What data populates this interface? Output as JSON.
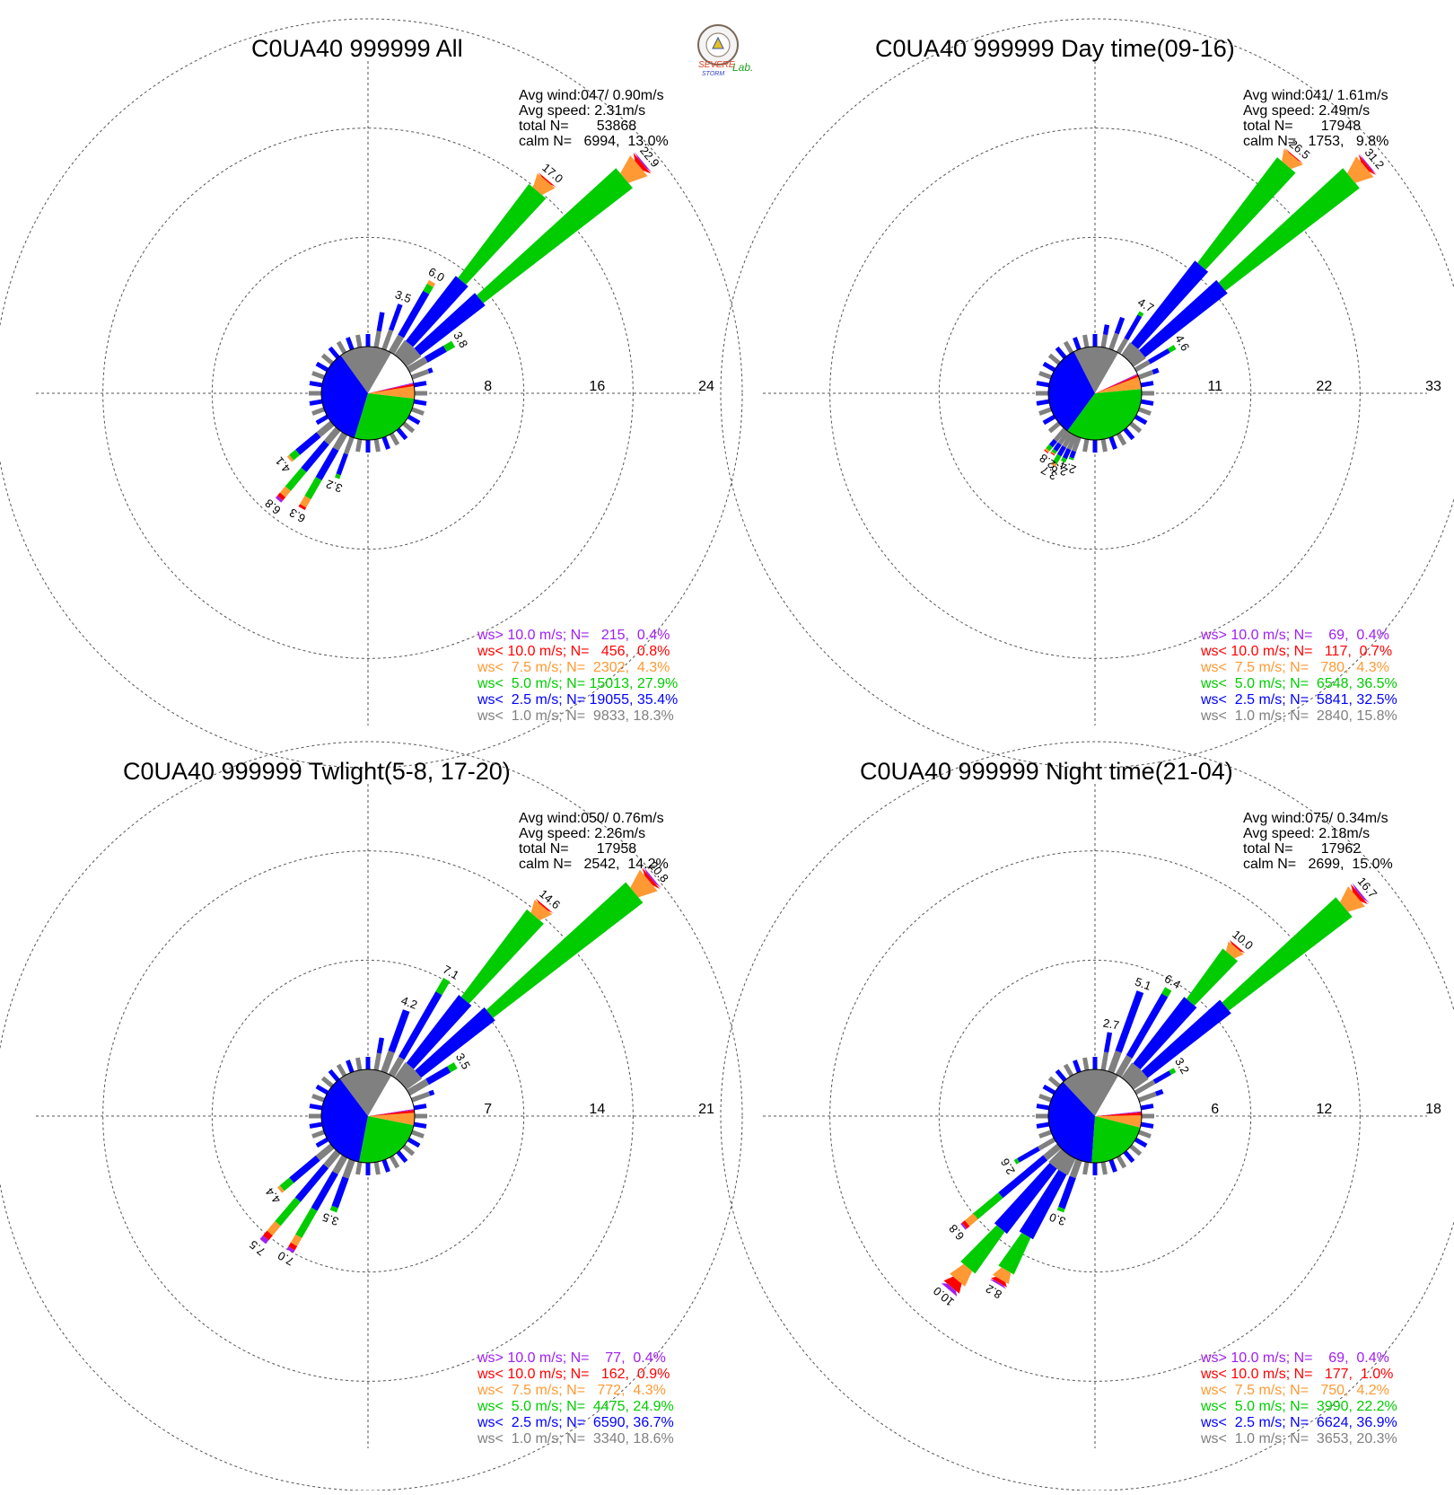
{
  "logo": {
    "text_lines": [
      "SEVERE",
      "STORM",
      "Lab."
    ]
  },
  "speed_classes": {
    "colors": {
      "gt10": "#a020f0",
      "lt10": "#ff0000",
      "lt75": "#ff9933",
      "lt50": "#00cc00",
      "lt25": "#0000ff",
      "lt10calm": "#808080"
    }
  },
  "chart_data": [
    {
      "type": "wind-rose",
      "title": "C0UA40 999999 All",
      "ring_labels": [
        "8",
        "16",
        "24"
      ],
      "rmax": 24,
      "info": [
        "Avg wind:047/ 0.90m/s",
        "Avg speed: 2.31m/s",
        "total N=       53868",
        "calm N=   6994,  13.0%"
      ],
      "legend": [
        {
          "key": "gt10",
          "text": "ws> 10.0 m/s; N=   215,  0.4%"
        },
        {
          "key": "lt10",
          "text": "ws< 10.0 m/s; N=   456,  0.8%"
        },
        {
          "key": "lt75",
          "text": "ws<  7.5 m/s; N=  2302,  4.3%"
        },
        {
          "key": "lt50",
          "text": "ws<  5.0 m/s; N= 15013, 27.9%"
        },
        {
          "key": "lt25",
          "text": "ws<  2.5 m/s; N= 19055, 35.4%"
        },
        {
          "key": "lt10calm",
          "text": "ws<  1.0 m/s; N=  9833, 18.3%"
        }
      ],
      "pie": [
        {
          "key": "lt10calm",
          "pct": 18.3
        },
        {
          "key": "lt25",
          "pct": 35.4
        },
        {
          "key": "lt50",
          "pct": 27.9
        },
        {
          "key": "lt75",
          "pct": 4.3
        },
        {
          "key": "lt10",
          "pct": 0.8
        },
        {
          "key": "gt10",
          "pct": 0.4
        },
        {
          "key": "calm",
          "pct": 13.0
        }
      ],
      "directions": [
        {
          "dir": 10,
          "gray": 1.2,
          "blue": 1.4,
          "green": 0,
          "orange": 0,
          "red": 0,
          "purple": 0
        },
        {
          "dir": 20,
          "gray": 1.5,
          "blue": 2.0,
          "green": 0,
          "orange": 0,
          "red": 0,
          "purple": 0,
          "label": "3.5"
        },
        {
          "dir": 30,
          "gray": 1.4,
          "blue": 3.7,
          "green": 0.6,
          "orange": 0.3,
          "red": 0,
          "purple": 0,
          "label": "6.0"
        },
        {
          "dir": 40,
          "gray": 1.3,
          "blue": 6.0,
          "green": 8.6,
          "orange": 1.0,
          "red": 0.1,
          "purple": 0,
          "label": "17.0"
        },
        {
          "dir": 50,
          "gray": 1.3,
          "blue": 6.0,
          "green": 13.8,
          "orange": 1.4,
          "red": 0.3,
          "purple": 0.1,
          "label": "22.9"
        },
        {
          "dir": 60,
          "gray": 1.5,
          "blue": 1.6,
          "green": 0.7,
          "orange": 0,
          "red": 0,
          "purple": 0,
          "label": "3.8"
        },
        {
          "dir": 70,
          "gray": 1.3,
          "blue": 0.3,
          "green": 0,
          "orange": 0,
          "red": 0,
          "purple": 0
        },
        {
          "dir": 200,
          "gray": 1.3,
          "blue": 1.6,
          "green": 0.3,
          "orange": 0,
          "red": 0,
          "purple": 0,
          "label": "3.2"
        },
        {
          "dir": 210,
          "gray": 1.3,
          "blue": 2.5,
          "green": 1.6,
          "orange": 0.7,
          "red": 0.2,
          "purple": 0,
          "label": "6.3"
        },
        {
          "dir": 220,
          "gray": 1.3,
          "blue": 2.6,
          "green": 1.8,
          "orange": 0.6,
          "red": 0.3,
          "purple": 0.2,
          "label": "6.8"
        },
        {
          "dir": 230,
          "gray": 1.3,
          "blue": 2.0,
          "green": 0.6,
          "orange": 0.2,
          "red": 0,
          "purple": 0,
          "label": "4.1"
        }
      ]
    },
    {
      "type": "wind-rose",
      "title": "C0UA40 999999 Day time(09-16)",
      "ring_labels": [
        "11",
        "22",
        "33"
      ],
      "rmax": 33,
      "info": [
        "Avg wind:041/ 1.61m/s",
        "Avg speed: 2.49m/s",
        "total N=       17948",
        "calm N=   1753,   9.8%"
      ],
      "legend": [
        {
          "key": "gt10",
          "text": "ws> 10.0 m/s; N=    69,  0.4%"
        },
        {
          "key": "lt10",
          "text": "ws< 10.0 m/s; N=   117,  0.7%"
        },
        {
          "key": "lt75",
          "text": "ws<  7.5 m/s; N=   780,  4.3%"
        },
        {
          "key": "lt50",
          "text": "ws<  5.0 m/s; N=  6548, 36.5%"
        },
        {
          "key": "lt25",
          "text": "ws<  2.5 m/s; N=  5841, 32.5%"
        },
        {
          "key": "lt10calm",
          "text": "ws<  1.0 m/s; N=  2840, 15.8%"
        }
      ],
      "pie": [
        {
          "key": "lt10calm",
          "pct": 15.8
        },
        {
          "key": "lt25",
          "pct": 32.5
        },
        {
          "key": "lt50",
          "pct": 36.5
        },
        {
          "key": "lt75",
          "pct": 4.3
        },
        {
          "key": "lt10",
          "pct": 0.7
        },
        {
          "key": "gt10",
          "pct": 0.4
        },
        {
          "key": "calm",
          "pct": 9.8
        }
      ],
      "directions": [
        {
          "dir": 10,
          "gray": 1.3,
          "blue": 1.0,
          "green": 0,
          "orange": 0,
          "red": 0,
          "purple": 0
        },
        {
          "dir": 20,
          "gray": 1.7,
          "blue": 1.7,
          "green": 0,
          "orange": 0,
          "red": 0,
          "purple": 0
        },
        {
          "dir": 30,
          "gray": 1.6,
          "blue": 2.7,
          "green": 0.4,
          "orange": 0,
          "red": 0,
          "purple": 0,
          "label": "4.7"
        },
        {
          "dir": 40,
          "gray": 1.5,
          "blue": 10.5,
          "green": 13.3,
          "orange": 1.1,
          "red": 0.1,
          "purple": 0,
          "label": "26.5"
        },
        {
          "dir": 50,
          "gray": 1.5,
          "blue": 10.5,
          "green": 17.0,
          "orange": 1.8,
          "red": 0.3,
          "purple": 0.1,
          "label": "31.2"
        },
        {
          "dir": 60,
          "gray": 1.6,
          "blue": 2.3,
          "green": 0.7,
          "orange": 0,
          "red": 0,
          "purple": 0,
          "label": "4.6"
        },
        {
          "dir": 70,
          "gray": 1.5,
          "blue": 0.6,
          "green": 0,
          "orange": 0,
          "red": 0,
          "purple": 0
        },
        {
          "dir": 200,
          "gray": 1.5,
          "blue": 0.7,
          "green": 0.2,
          "orange": 0,
          "red": 0,
          "purple": 0,
          "label": "2.4"
        },
        {
          "dir": 205,
          "gray": 1.5,
          "blue": 1.0,
          "green": 0.4,
          "orange": 0,
          "red": 0,
          "purple": 0,
          "label": "2.9"
        },
        {
          "dir": 210,
          "gray": 1.5,
          "blue": 1.0,
          "green": 0.9,
          "orange": 0.3,
          "red": 0,
          "purple": 0,
          "label": "3.7"
        },
        {
          "dir": 215,
          "gray": 1.5,
          "blue": 0.8,
          "green": 0.3,
          "orange": 0.1,
          "red": 0.1,
          "purple": 0,
          "label": "2.8"
        },
        {
          "dir": 220,
          "gray": 1.5,
          "blue": 0.7,
          "green": 0.5,
          "orange": 0.2,
          "red": 0.1,
          "purple": 0
        }
      ]
    },
    {
      "type": "wind-rose",
      "title": "C0UA40 999999 Twlight(5-8, 17-20)",
      "ring_labels": [
        "7",
        "14",
        "21"
      ],
      "rmax": 21,
      "info": [
        "Avg wind:050/ 0.76m/s",
        "Avg speed: 2.26m/s",
        "total N=       17958",
        "calm N=   2542,  14.2%"
      ],
      "legend": [
        {
          "key": "gt10",
          "text": "ws> 10.0 m/s; N=    77,  0.4%"
        },
        {
          "key": "lt10",
          "text": "ws< 10.0 m/s; N=   162,  0.9%"
        },
        {
          "key": "lt75",
          "text": "ws<  7.5 m/s; N=   772,  4.3%"
        },
        {
          "key": "lt50",
          "text": "ws<  5.0 m/s; N=  4475, 24.9%"
        },
        {
          "key": "lt25",
          "text": "ws<  2.5 m/s; N=  6590, 36.7%"
        },
        {
          "key": "lt10calm",
          "text": "ws<  1.0 m/s; N=  3340, 18.6%"
        }
      ],
      "pie": [
        {
          "key": "lt10calm",
          "pct": 18.6
        },
        {
          "key": "lt25",
          "pct": 36.7
        },
        {
          "key": "lt50",
          "pct": 24.9
        },
        {
          "key": "lt75",
          "pct": 4.3
        },
        {
          "key": "lt10",
          "pct": 0.9
        },
        {
          "key": "gt10",
          "pct": 0.4
        },
        {
          "key": "calm",
          "pct": 14.2
        }
      ],
      "directions": [
        {
          "dir": 10,
          "gray": 1.1,
          "blue": 1.0,
          "green": 0,
          "orange": 0,
          "red": 0,
          "purple": 0
        },
        {
          "dir": 20,
          "gray": 1.4,
          "blue": 2.8,
          "green": 0,
          "orange": 0,
          "red": 0,
          "purple": 0,
          "label": "4.2"
        },
        {
          "dir": 30,
          "gray": 1.3,
          "blue": 4.8,
          "green": 1.0,
          "orange": 0,
          "red": 0,
          "purple": 0,
          "label": "7.1"
        },
        {
          "dir": 40,
          "gray": 1.2,
          "blue": 5.5,
          "green": 7.0,
          "orange": 0.8,
          "red": 0.1,
          "purple": 0,
          "label": "14.6"
        },
        {
          "dir": 50,
          "gray": 1.2,
          "blue": 6.0,
          "green": 12.1,
          "orange": 1.2,
          "red": 0.2,
          "purple": 0.1,
          "label": "20.8"
        },
        {
          "dir": 60,
          "gray": 1.4,
          "blue": 1.6,
          "green": 0.5,
          "orange": 0,
          "red": 0,
          "purple": 0,
          "label": "3.5"
        },
        {
          "dir": 70,
          "gray": 1.2,
          "blue": 0.3,
          "green": 0,
          "orange": 0,
          "red": 0,
          "purple": 0
        },
        {
          "dir": 200,
          "gray": 1.2,
          "blue": 2.0,
          "green": 0.3,
          "orange": 0,
          "red": 0,
          "purple": 0,
          "label": "3.5"
        },
        {
          "dir": 210,
          "gray": 1.2,
          "blue": 2.7,
          "green": 2.0,
          "orange": 0.6,
          "red": 0.3,
          "purple": 0.2,
          "label": "7.0"
        },
        {
          "dir": 220,
          "gray": 1.2,
          "blue": 2.8,
          "green": 2.0,
          "orange": 0.8,
          "red": 0.4,
          "purple": 0.3,
          "label": "7.5"
        },
        {
          "dir": 230,
          "gray": 1.2,
          "blue": 2.2,
          "green": 0.8,
          "orange": 0.2,
          "red": 0,
          "purple": 0,
          "label": "4.4"
        }
      ]
    },
    {
      "type": "wind-rose",
      "title": "C0UA40 999999 Night time(21-04)",
      "ring_labels": [
        "6",
        "12",
        "18"
      ],
      "rmax": 18,
      "info": [
        "Avg wind:075/ 0.34m/s",
        "Avg speed: 2.18m/s",
        "total N=       17962",
        "calm N=   2699,  15.0%"
      ],
      "legend": [
        {
          "key": "gt10",
          "text": "ws> 10.0 m/s; N=    69,  0.4%"
        },
        {
          "key": "lt10",
          "text": "ws< 10.0 m/s; N=   177,  1.0%"
        },
        {
          "key": "lt75",
          "text": "ws<  7.5 m/s; N=   750,  4.2%"
        },
        {
          "key": "lt50",
          "text": "ws<  5.0 m/s; N=  3990, 22.2%"
        },
        {
          "key": "lt25",
          "text": "ws<  2.5 m/s; N=  6624, 36.9%"
        },
        {
          "key": "lt10calm",
          "text": "ws<  1.0 m/s; N=  3653, 20.3%"
        }
      ],
      "pie": [
        {
          "key": "lt10calm",
          "pct": 20.3
        },
        {
          "key": "lt25",
          "pct": 36.9
        },
        {
          "key": "lt50",
          "pct": 22.2
        },
        {
          "key": "lt75",
          "pct": 4.2
        },
        {
          "key": "lt10",
          "pct": 1.0
        },
        {
          "key": "gt10",
          "pct": 0.4
        },
        {
          "key": "calm",
          "pct": 15.0
        }
      ],
      "directions": [
        {
          "dir": 10,
          "gray": 1.0,
          "blue": 1.1,
          "green": 0,
          "orange": 0,
          "red": 0,
          "purple": 0,
          "label": "2.7"
        },
        {
          "dir": 20,
          "gray": 1.2,
          "blue": 3.5,
          "green": 0,
          "orange": 0,
          "red": 0,
          "purple": 0,
          "label": "5.1"
        },
        {
          "dir": 30,
          "gray": 1.2,
          "blue": 3.9,
          "green": 0.4,
          "orange": 0,
          "red": 0,
          "purple": 0,
          "label": "6.4"
        },
        {
          "dir": 40,
          "gray": 1.0,
          "blue": 4.6,
          "green": 3.4,
          "orange": 0.5,
          "red": 0.1,
          "purple": 0,
          "label": "10.0"
        },
        {
          "dir": 50,
          "gray": 1.0,
          "blue": 5.8,
          "green": 8.5,
          "orange": 0.9,
          "red": 0.2,
          "purple": 0.1,
          "label": "16.7"
        },
        {
          "dir": 60,
          "gray": 1.2,
          "blue": 1.0,
          "green": 0.3,
          "orange": 0,
          "red": 0,
          "purple": 0,
          "label": "3.2"
        },
        {
          "dir": 70,
          "gray": 1.0,
          "blue": 0.4,
          "green": 0,
          "orange": 0,
          "red": 0,
          "purple": 0
        },
        {
          "dir": 200,
          "gray": 1.0,
          "blue": 1.8,
          "green": 0.2,
          "orange": 0,
          "red": 0,
          "purple": 0,
          "label": "3.0"
        },
        {
          "dir": 210,
          "gray": 1.0,
          "blue": 4.0,
          "green": 2.2,
          "orange": 0.6,
          "red": 0.2,
          "purple": 0.1,
          "label": "8.2"
        },
        {
          "dir": 220,
          "gray": 1.0,
          "blue": 4.5,
          "green": 2.8,
          "orange": 0.9,
          "red": 0.5,
          "purple": 0.2,
          "label": "10.0"
        },
        {
          "dir": 230,
          "gray": 1.0,
          "blue": 3.2,
          "green": 1.8,
          "orange": 0.6,
          "red": 0.2,
          "purple": 0.1,
          "label": "6.8"
        },
        {
          "dir": 240,
          "gray": 1.0,
          "blue": 1.3,
          "green": 0.2,
          "orange": 0,
          "red": 0,
          "purple": 0,
          "label": "2.6"
        }
      ]
    }
  ]
}
